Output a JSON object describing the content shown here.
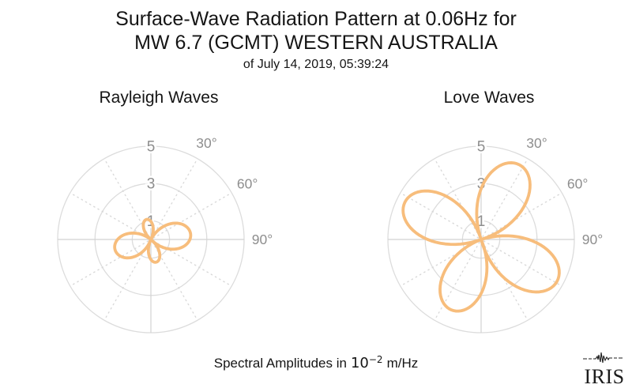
{
  "header": {
    "title_line1": "Surface-Wave Radiation Pattern at 0.06Hz for",
    "title_line2": "MW 6.7 (GCMT) WESTERN AUSTRALIA",
    "title_line3": "of July 14, 2019, 05:39:24"
  },
  "caption": {
    "prefix": "Spectral Amplitudes in",
    "base": "10",
    "exponent": "−2",
    "suffix": "m/Hz"
  },
  "logo": {
    "text": "IRIS"
  },
  "colors": {
    "pattern_stroke": "#f7bd7c",
    "grid_ring": "#dcdcdc",
    "grid_cross": "#d2d2d2",
    "grid_dotted": "#d8d8d8",
    "tick_label": "#8e8e8e",
    "title_text": "#151515",
    "logo_ink": "#1c1c1c"
  },
  "chart_data": [
    {
      "type": "polar_radiation",
      "title": "Rayleigh Waves",
      "amplitude_units": "10^-2 m/Hz",
      "r_ticks": [
        1,
        3,
        5
      ],
      "r_max": 5,
      "spoke_interval_deg": 30,
      "angle_tick_labels": [
        {
          "azimuth_deg": 30,
          "label": "30°"
        },
        {
          "azimuth_deg": 60,
          "label": "60°"
        },
        {
          "azimuth_deg": 90,
          "label": "90°"
        }
      ],
      "lobes": [
        {
          "azimuth_deg": 82,
          "amplitude": 2.15,
          "half_width_deg": 54
        },
        {
          "azimuth_deg": 167,
          "amplitude": 1.25,
          "half_width_deg": 38
        },
        {
          "azimuth_deg": 254,
          "amplitude": 2.0,
          "half_width_deg": 54
        },
        {
          "azimuth_deg": 348,
          "amplitude": 1.1,
          "half_width_deg": 38
        }
      ]
    },
    {
      "type": "polar_radiation",
      "title": "Love Waves",
      "amplitude_units": "10^-2 m/Hz",
      "r_ticks": [
        1,
        3,
        5
      ],
      "r_max": 5,
      "spoke_interval_deg": 30,
      "angle_tick_labels": [
        {
          "azimuth_deg": 30,
          "label": "30°"
        },
        {
          "azimuth_deg": 60,
          "label": "60°"
        },
        {
          "azimuth_deg": 90,
          "label": "90°"
        }
      ],
      "lobes": [
        {
          "azimuth_deg": 27,
          "amplitude": 4.5,
          "half_width_deg": 46
        },
        {
          "azimuth_deg": 119,
          "amplitude": 4.65,
          "half_width_deg": 46
        },
        {
          "azimuth_deg": 203,
          "amplitude": 4.1,
          "half_width_deg": 46
        },
        {
          "azimuth_deg": 296,
          "amplitude": 4.55,
          "half_width_deg": 46
        }
      ]
    }
  ]
}
